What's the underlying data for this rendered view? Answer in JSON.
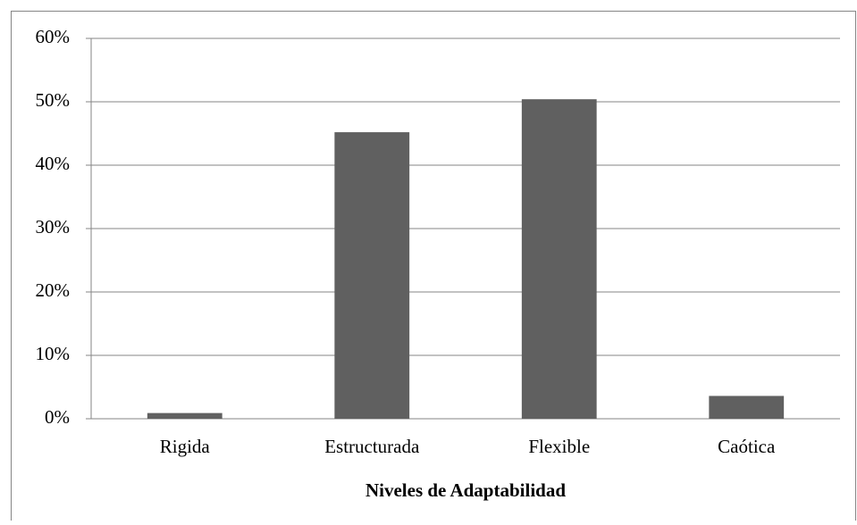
{
  "chart_data": {
    "type": "bar",
    "x_label": "Niveles de Adaptabilidad",
    "categories": [
      "Rigida",
      "Estructurada",
      "Flexible",
      "Caótica"
    ],
    "values": [
      0.9,
      45.2,
      50.4,
      3.6
    ],
    "color": "#606060",
    "ylim": [
      0,
      60
    ],
    "yticks": [
      {
        "value": 0,
        "label": "0%"
      },
      {
        "value": 10,
        "label": "10%"
      },
      {
        "value": 20,
        "label": "20%"
      },
      {
        "value": 30,
        "label": "30%"
      },
      {
        "value": 40,
        "label": "40%"
      },
      {
        "value": 50,
        "label": "50%"
      },
      {
        "value": 60,
        "label": "60%"
      }
    ],
    "grid": true
  }
}
